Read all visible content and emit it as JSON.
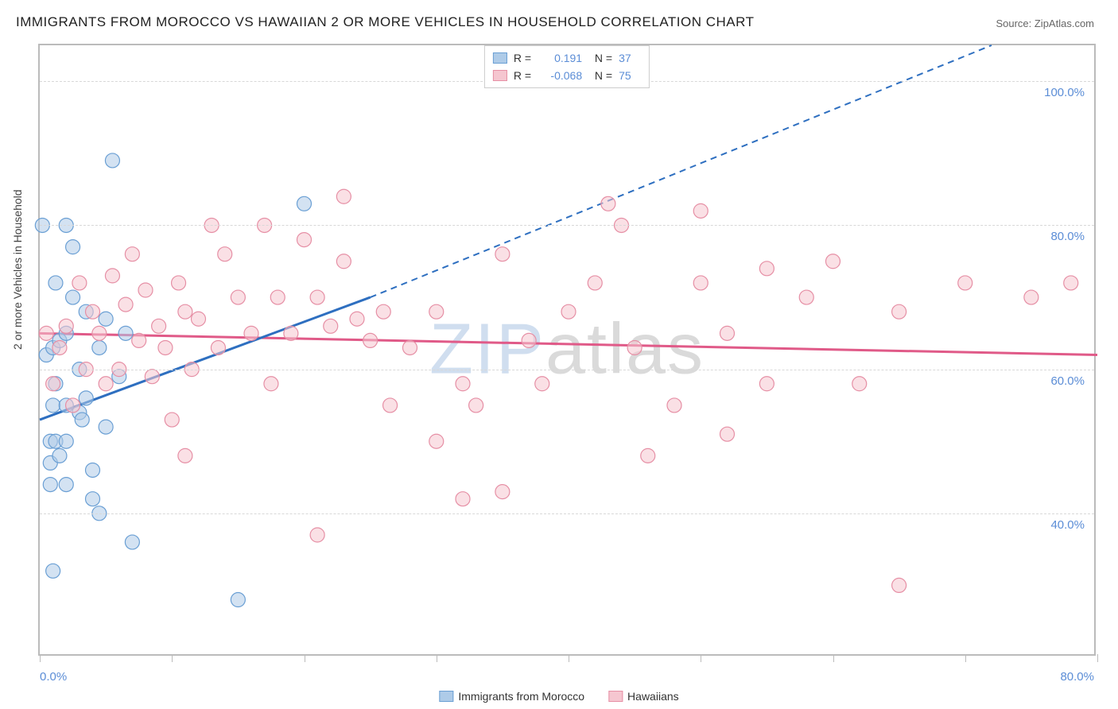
{
  "title": "IMMIGRANTS FROM MOROCCO VS HAWAIIAN 2 OR MORE VEHICLES IN HOUSEHOLD CORRELATION CHART",
  "source": "Source: ZipAtlas.com",
  "ylabel": "2 or more Vehicles in Household",
  "watermark_part1": "ZIP",
  "watermark_part2": "atlas",
  "chart": {
    "type": "scatter",
    "xlim": [
      0,
      80
    ],
    "ylim": [
      20,
      105
    ],
    "ytick_labels": [
      "40.0%",
      "60.0%",
      "80.0%",
      "100.0%"
    ],
    "ytick_values": [
      40,
      60,
      80,
      100
    ],
    "xtick_values": [
      0,
      10,
      20,
      30,
      40,
      50,
      60,
      70,
      80
    ],
    "xtick_labels": {
      "0": "0.0%",
      "80": "80.0%"
    },
    "grid_color": "#d8d8d8",
    "background": "#ffffff",
    "marker_radius": 9,
    "marker_opacity": 0.55,
    "series": [
      {
        "name": "Immigrants from Morocco",
        "color_fill": "#aecbe8",
        "color_stroke": "#6a9fd4",
        "R": "0.191",
        "N": "37",
        "trend": {
          "x1": 0,
          "y1": 53,
          "x2_solid": 25,
          "y2_solid": 70,
          "x2_dash": 72,
          "y2_dash": 105,
          "color": "#2e6fc0"
        },
        "points": [
          [
            0.2,
            80
          ],
          [
            0.5,
            62
          ],
          [
            0.8,
            50
          ],
          [
            0.8,
            47
          ],
          [
            0.8,
            44
          ],
          [
            1,
            55
          ],
          [
            1,
            63
          ],
          [
            1.2,
            72
          ],
          [
            1.2,
            58
          ],
          [
            1.2,
            50
          ],
          [
            1.5,
            64
          ],
          [
            1.5,
            48
          ],
          [
            2,
            80
          ],
          [
            2,
            65
          ],
          [
            2,
            55
          ],
          [
            2,
            50
          ],
          [
            2,
            44
          ],
          [
            2.5,
            77
          ],
          [
            2.5,
            70
          ],
          [
            3,
            60
          ],
          [
            3,
            54
          ],
          [
            3.5,
            56
          ],
          [
            4,
            46
          ],
          [
            4,
            42
          ],
          [
            4.5,
            63
          ],
          [
            5,
            67
          ],
          [
            5,
            52
          ],
          [
            5.5,
            89
          ],
          [
            6,
            59
          ],
          [
            6.5,
            65
          ],
          [
            1,
            32
          ],
          [
            4.5,
            40
          ],
          [
            7,
            36
          ],
          [
            15,
            28
          ],
          [
            3.2,
            53
          ],
          [
            20,
            83
          ],
          [
            3.5,
            68
          ]
        ]
      },
      {
        "name": "Hawaiians",
        "color_fill": "#f5c6d0",
        "color_stroke": "#e68fa5",
        "R": "-0.068",
        "N": "75",
        "trend": {
          "x1": 0,
          "y1": 65,
          "x2": 80,
          "y2": 62,
          "color": "#e05a88"
        },
        "points": [
          [
            0.5,
            65
          ],
          [
            1,
            58
          ],
          [
            1.5,
            63
          ],
          [
            2,
            66
          ],
          [
            2.5,
            55
          ],
          [
            3,
            72
          ],
          [
            3.5,
            60
          ],
          [
            4,
            68
          ],
          [
            4.5,
            65
          ],
          [
            5,
            58
          ],
          [
            5.5,
            73
          ],
          [
            6,
            60
          ],
          [
            6.5,
            69
          ],
          [
            7,
            76
          ],
          [
            7.5,
            64
          ],
          [
            8,
            71
          ],
          [
            8.5,
            59
          ],
          [
            9,
            66
          ],
          [
            9.5,
            63
          ],
          [
            10,
            53
          ],
          [
            10.5,
            72
          ],
          [
            11,
            68
          ],
          [
            11.5,
            60
          ],
          [
            12,
            67
          ],
          [
            13,
            80
          ],
          [
            13.5,
            63
          ],
          [
            14,
            76
          ],
          [
            15,
            70
          ],
          [
            16,
            65
          ],
          [
            17,
            80
          ],
          [
            17.5,
            58
          ],
          [
            18,
            70
          ],
          [
            19,
            65
          ],
          [
            20,
            78
          ],
          [
            21,
            70
          ],
          [
            22,
            66
          ],
          [
            23,
            75
          ],
          [
            24,
            67
          ],
          [
            23,
            84
          ],
          [
            25,
            64
          ],
          [
            26,
            68
          ],
          [
            21,
            37
          ],
          [
            26.5,
            55
          ],
          [
            28,
            63
          ],
          [
            30,
            68
          ],
          [
            30,
            50
          ],
          [
            32,
            58
          ],
          [
            32,
            42
          ],
          [
            33,
            55
          ],
          [
            35,
            43
          ],
          [
            35,
            76
          ],
          [
            37,
            64
          ],
          [
            38,
            58
          ],
          [
            40,
            68
          ],
          [
            42,
            72
          ],
          [
            43,
            83
          ],
          [
            44,
            80
          ],
          [
            45,
            63
          ],
          [
            46,
            48
          ],
          [
            48,
            55
          ],
          [
            50,
            82
          ],
          [
            50,
            72
          ],
          [
            52,
            65
          ],
          [
            52,
            51
          ],
          [
            55,
            74
          ],
          [
            55,
            58
          ],
          [
            58,
            70
          ],
          [
            60,
            75
          ],
          [
            62,
            58
          ],
          [
            65,
            68
          ],
          [
            65,
            30
          ],
          [
            70,
            72
          ],
          [
            75,
            70
          ],
          [
            78,
            72
          ],
          [
            11,
            48
          ]
        ]
      }
    ]
  },
  "legend_bottom": [
    {
      "label": "Immigrants from Morocco",
      "fill": "#aecbe8",
      "stroke": "#6a9fd4"
    },
    {
      "label": "Hawaiians",
      "fill": "#f5c6d0",
      "stroke": "#e68fa5"
    }
  ]
}
